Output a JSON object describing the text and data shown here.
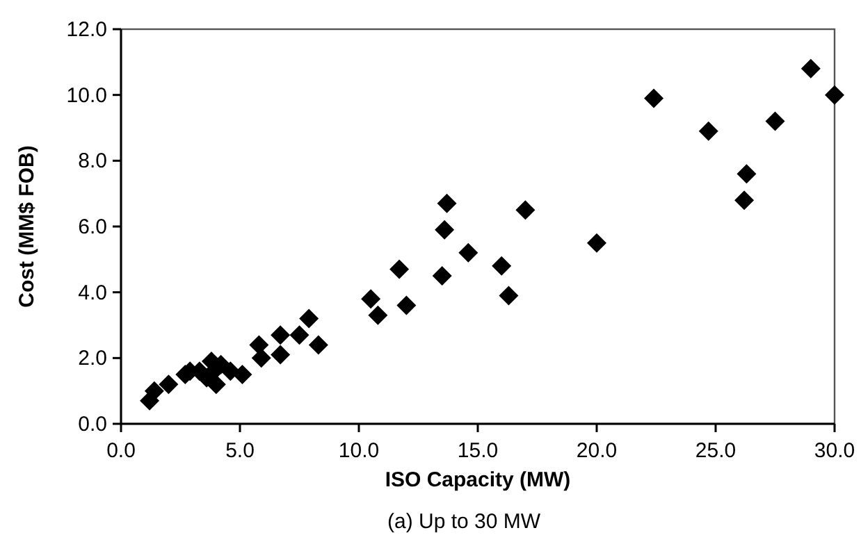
{
  "chart_data": {
    "type": "scatter",
    "xlabel": "ISO Capacity (MW)",
    "ylabel": "Cost (MM$ FOB)",
    "annotations": [
      "(a) Up to 30 MW"
    ],
    "xlim": [
      0,
      30
    ],
    "ylim": [
      0,
      12
    ],
    "xticks": [
      {
        "value": 0,
        "label": "0.0"
      },
      {
        "value": 5,
        "label": "5.0"
      },
      {
        "value": 10,
        "label": "10.0"
      },
      {
        "value": 15,
        "label": "15.0"
      },
      {
        "value": 20,
        "label": "20.0"
      },
      {
        "value": 25,
        "label": "25.0"
      },
      {
        "value": 30,
        "label": "30.0"
      }
    ],
    "yticks": [
      {
        "value": 0,
        "label": "0.0"
      },
      {
        "value": 2,
        "label": "2.0"
      },
      {
        "value": 4,
        "label": "4.0"
      },
      {
        "value": 6,
        "label": "6.0"
      },
      {
        "value": 8,
        "label": "8.0"
      },
      {
        "value": 10,
        "label": "10.0"
      },
      {
        "value": 12,
        "label": "12.0"
      }
    ],
    "marker": "diamond",
    "grid": false,
    "series": [
      {
        "color": "#000000",
        "x": [
          1.2,
          1.4,
          2.0,
          2.7,
          2.9,
          3.3,
          3.6,
          3.8,
          3.9,
          4.0,
          4.2,
          4.6,
          5.1,
          5.8,
          5.9,
          6.7,
          6.7,
          7.5,
          7.9,
          8.3,
          10.5,
          10.8,
          11.7,
          12.0,
          13.5,
          13.6,
          13.7,
          14.6,
          16.0,
          16.3,
          17.0,
          20.0,
          22.4,
          24.7,
          26.2,
          26.3,
          27.5,
          29.0,
          30.0
        ],
        "values": [
          0.7,
          1.0,
          1.2,
          1.5,
          1.6,
          1.6,
          1.4,
          1.9,
          1.6,
          1.2,
          1.8,
          1.6,
          1.5,
          2.4,
          2.0,
          2.7,
          2.1,
          2.7,
          3.2,
          2.4,
          3.8,
          3.3,
          4.7,
          3.6,
          4.5,
          5.9,
          6.7,
          5.2,
          4.8,
          3.9,
          6.5,
          5.5,
          9.9,
          8.9,
          6.8,
          7.6,
          9.2,
          10.8,
          10.0
        ]
      }
    ]
  }
}
